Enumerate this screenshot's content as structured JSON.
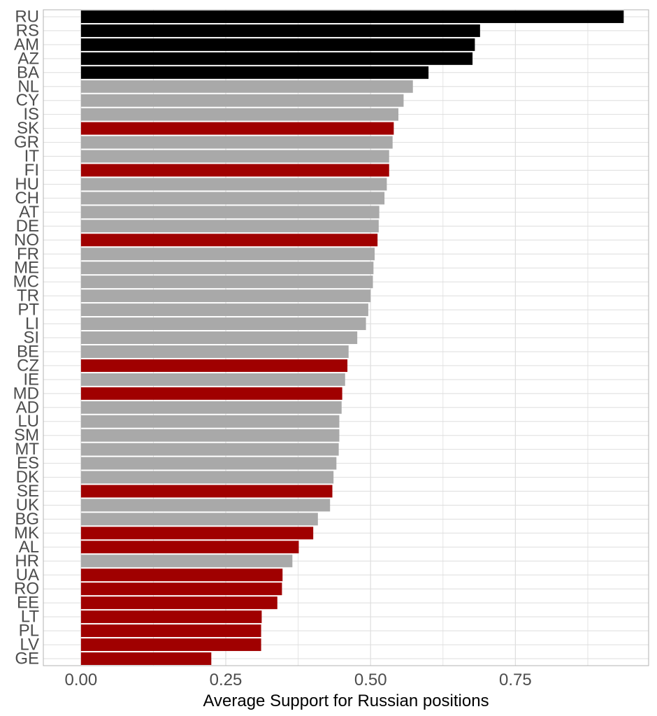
{
  "chart_data": {
    "type": "bar",
    "orientation": "horizontal",
    "title": "",
    "xlabel": "Average Support for Russian positions",
    "ylabel": "",
    "xlim": [
      -0.065,
      0.98
    ],
    "xticks": [
      0.0,
      0.25,
      0.5,
      0.75
    ],
    "xtick_labels": [
      "0.00",
      "0.25",
      "0.50",
      "0.75"
    ],
    "grid": true,
    "legend": "none",
    "colors": {
      "black": "#000000",
      "grey": "#a9a9a9",
      "red": "#a00000",
      "grid": "#dedede",
      "border": "#b3b3b3"
    },
    "categories": [
      "RU",
      "RS",
      "AM",
      "AZ",
      "BA",
      "NL",
      "CY",
      "IS",
      "SK",
      "GR",
      "IT",
      "FI",
      "HU",
      "CH",
      "AT",
      "DE",
      "NO",
      "FR",
      "ME",
      "MC",
      "TR",
      "PT",
      "LI",
      "SI",
      "BE",
      "CZ",
      "IE",
      "MD",
      "AD",
      "LU",
      "SM",
      "MT",
      "ES",
      "DK",
      "SE",
      "UK",
      "BG",
      "MK",
      "AL",
      "HR",
      "UA",
      "RO",
      "EE",
      "LT",
      "PL",
      "LV",
      "GE"
    ],
    "values": [
      0.937,
      0.689,
      0.68,
      0.676,
      0.6,
      0.573,
      0.557,
      0.548,
      0.54,
      0.538,
      0.532,
      0.532,
      0.528,
      0.524,
      0.515,
      0.514,
      0.512,
      0.507,
      0.505,
      0.504,
      0.5,
      0.496,
      0.492,
      0.477,
      0.462,
      0.46,
      0.456,
      0.451,
      0.45,
      0.446,
      0.446,
      0.445,
      0.441,
      0.436,
      0.434,
      0.43,
      0.409,
      0.401,
      0.376,
      0.365,
      0.348,
      0.347,
      0.339,
      0.312,
      0.311,
      0.311,
      0.225
    ],
    "bar_colors": [
      "black",
      "black",
      "black",
      "black",
      "black",
      "grey",
      "grey",
      "grey",
      "red",
      "grey",
      "grey",
      "red",
      "grey",
      "grey",
      "grey",
      "grey",
      "red",
      "grey",
      "grey",
      "grey",
      "grey",
      "grey",
      "grey",
      "grey",
      "grey",
      "red",
      "grey",
      "red",
      "grey",
      "grey",
      "grey",
      "grey",
      "grey",
      "grey",
      "red",
      "grey",
      "grey",
      "red",
      "red",
      "grey",
      "red",
      "red",
      "red",
      "red",
      "red",
      "red",
      "red"
    ]
  }
}
